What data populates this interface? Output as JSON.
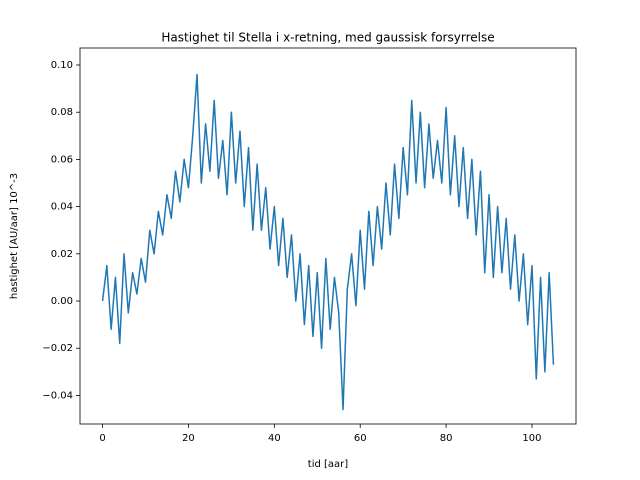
{
  "chart_data": {
    "type": "line",
    "title": "Hastighet til Stella i x-retning, med gaussisk forsyrrelse",
    "xlabel": "tid [aar]",
    "ylabel": "hastighet [AU/aar] 10^-3",
    "x": [
      0,
      1,
      2,
      3,
      4,
      5,
      6,
      7,
      8,
      9,
      10,
      11,
      12,
      13,
      14,
      15,
      16,
      17,
      18,
      19,
      20,
      21,
      22,
      23,
      24,
      25,
      26,
      27,
      28,
      29,
      30,
      31,
      32,
      33,
      34,
      35,
      36,
      37,
      38,
      39,
      40,
      41,
      42,
      43,
      44,
      45,
      46,
      47,
      48,
      49,
      50,
      51,
      52,
      53,
      54,
      55,
      56,
      57,
      58,
      59,
      60,
      61,
      62,
      63,
      64,
      65,
      66,
      67,
      68,
      69,
      70,
      71,
      72,
      73,
      74,
      75,
      76,
      77,
      78,
      79,
      80,
      81,
      82,
      83,
      84,
      85,
      86,
      87,
      88,
      89,
      90,
      91,
      92,
      93,
      94,
      95,
      96,
      97,
      98,
      99,
      100,
      101,
      102,
      103,
      104,
      105
    ],
    "series": [
      {
        "color": "#1f77b4",
        "values": [
          0.0,
          0.015,
          -0.012,
          0.01,
          -0.018,
          0.02,
          -0.005,
          0.012,
          0.003,
          0.018,
          0.008,
          0.03,
          0.02,
          0.038,
          0.028,
          0.045,
          0.035,
          0.055,
          0.042,
          0.06,
          0.048,
          0.07,
          0.096,
          0.05,
          0.075,
          0.055,
          0.085,
          0.052,
          0.068,
          0.045,
          0.08,
          0.05,
          0.072,
          0.04,
          0.065,
          0.03,
          0.058,
          0.03,
          0.048,
          0.022,
          0.04,
          0.015,
          0.035,
          0.01,
          0.028,
          0.0,
          0.02,
          -0.01,
          0.015,
          -0.015,
          0.012,
          -0.02,
          0.018,
          -0.012,
          0.01,
          -0.005,
          -0.046,
          0.005,
          0.02,
          -0.002,
          0.03,
          0.005,
          0.038,
          0.015,
          0.04,
          0.022,
          0.05,
          0.028,
          0.058,
          0.035,
          0.065,
          0.045,
          0.085,
          0.05,
          0.08,
          0.048,
          0.075,
          0.052,
          0.068,
          0.05,
          0.082,
          0.045,
          0.07,
          0.04,
          0.065,
          0.035,
          0.06,
          0.028,
          0.055,
          0.012,
          0.045,
          0.01,
          0.04,
          0.012,
          0.035,
          0.005,
          0.028,
          0.0,
          0.02,
          -0.01,
          0.015,
          -0.033,
          0.01,
          -0.03,
          0.012,
          -0.027
        ]
      }
    ],
    "xlim": [
      -5.25,
      110.25
    ],
    "ylim": [
      -0.0521,
      0.1072
    ],
    "xticks": [
      0,
      20,
      40,
      60,
      80,
      100
    ],
    "yticks": [
      {
        "value": -0.04,
        "label": "−0.04"
      },
      {
        "value": -0.02,
        "label": "−0.02"
      },
      {
        "value": 0,
        "label": "0.00"
      },
      {
        "value": 0.02,
        "label": "0.02"
      },
      {
        "value": 0.04,
        "label": "0.04"
      },
      {
        "value": 0.06,
        "label": "0.06"
      },
      {
        "value": 0.08,
        "label": "0.08"
      },
      {
        "value": 0.1,
        "label": "0.10"
      }
    ],
    "grid": false
  }
}
